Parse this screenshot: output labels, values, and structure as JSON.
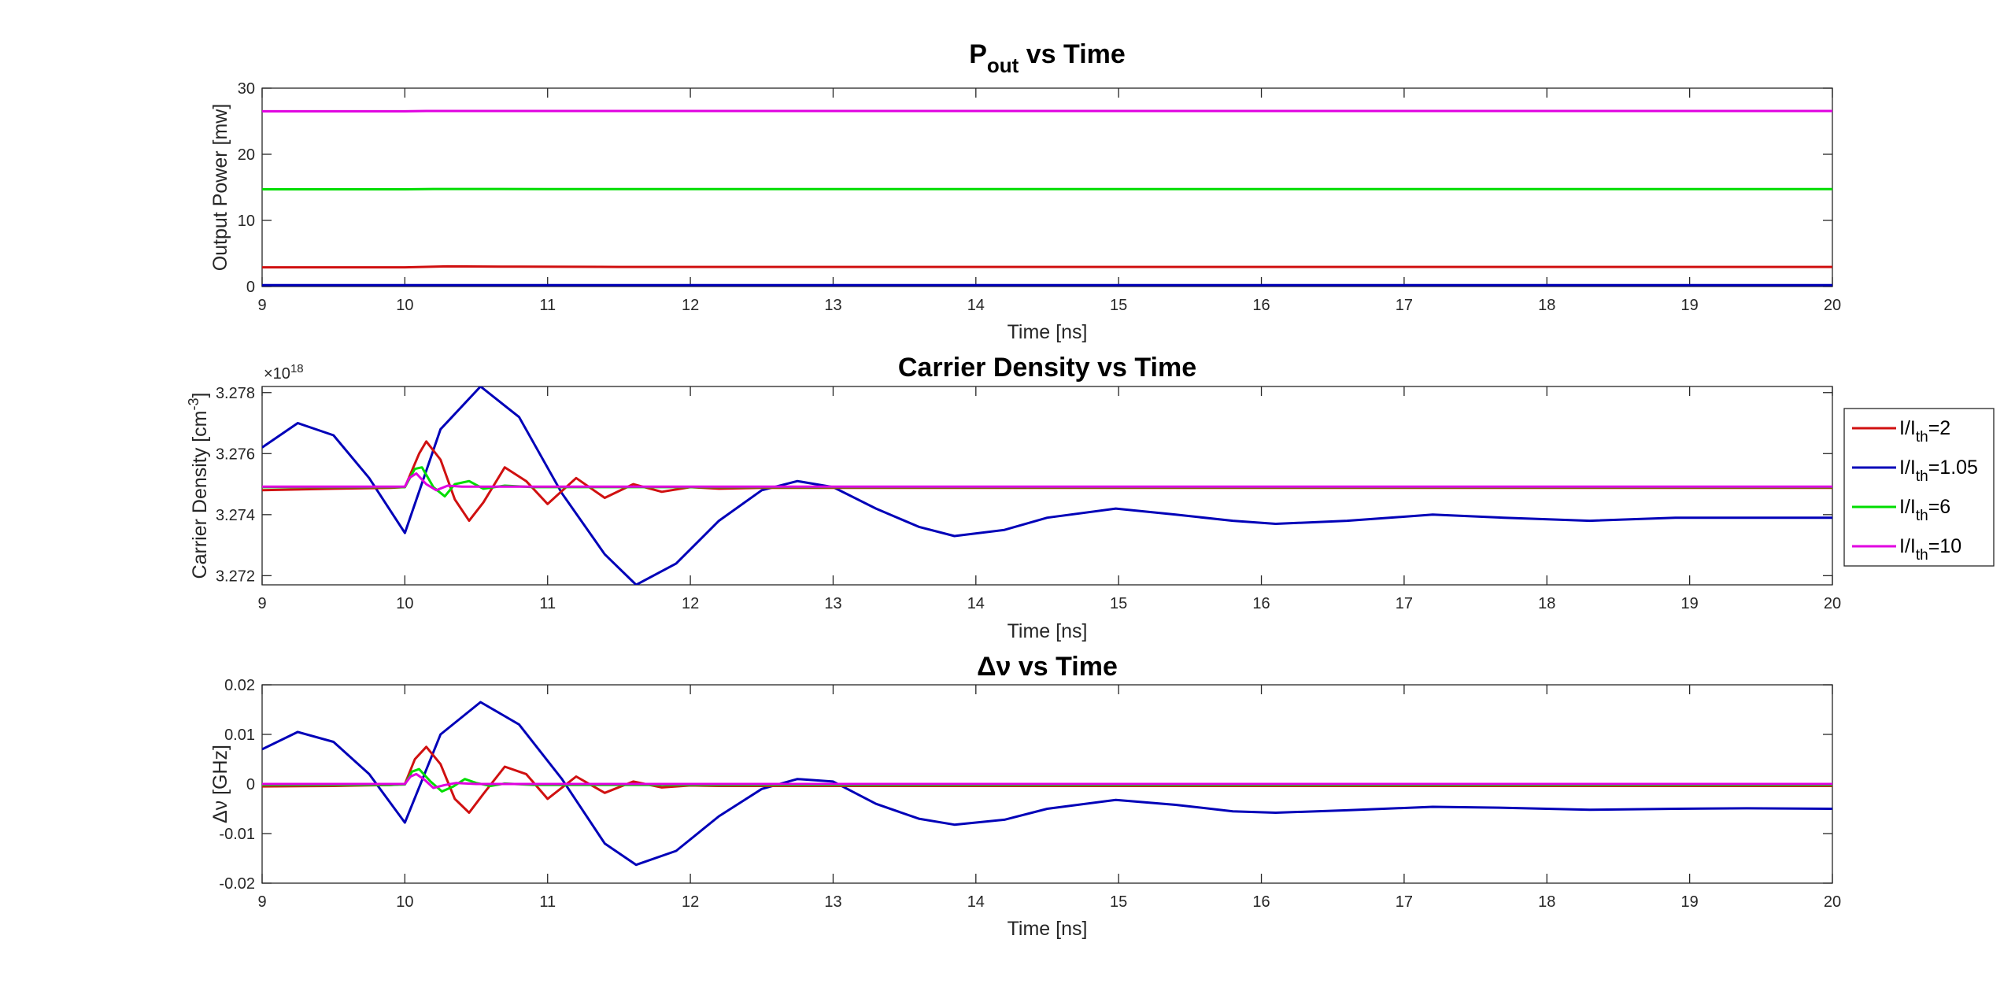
{
  "figure": {
    "legend": {
      "placement": "right-of-middle-axes",
      "entries": [
        {
          "label": "I/I",
          "sub": "th",
          "tail": "=2",
          "color": "#d01010"
        },
        {
          "label": "I/I",
          "sub": "th",
          "tail": "=1.05",
          "color": "#0000b8"
        },
        {
          "label": "I/I",
          "sub": "th",
          "tail": "=6",
          "color": "#00dd00"
        },
        {
          "label": "I/I",
          "sub": "th",
          "tail": "=10",
          "color": "#e000e0"
        }
      ]
    }
  },
  "chart_data": [
    {
      "type": "line",
      "title_main": "P",
      "title_sub": "out",
      "title_tail": " vs Time",
      "xlabel": "Time [ns]",
      "ylabel": "Output Power [mw]",
      "xlim": [
        9,
        20
      ],
      "ylim": [
        0,
        30
      ],
      "xticks": [
        9,
        10,
        11,
        12,
        13,
        14,
        15,
        16,
        17,
        18,
        19,
        20
      ],
      "yticks": [
        0,
        10,
        20,
        30
      ],
      "grid": false,
      "series": [
        {
          "color": "#d01010",
          "x": [
            9,
            10,
            10.3,
            10.8,
            11.5,
            12,
            13,
            14,
            15,
            16,
            17,
            18,
            19,
            20
          ],
          "y": [
            2.9,
            2.9,
            3.05,
            3.0,
            2.97,
            2.96,
            2.96,
            2.96,
            2.96,
            2.96,
            2.96,
            2.96,
            2.96,
            2.96
          ]
        },
        {
          "color": "#0000b8",
          "x": [
            9,
            10,
            11,
            12,
            13,
            14,
            15,
            16,
            17,
            18,
            19,
            20
          ],
          "y": [
            0.2,
            0.2,
            0.22,
            0.21,
            0.21,
            0.21,
            0.21,
            0.21,
            0.21,
            0.21,
            0.21,
            0.21
          ]
        },
        {
          "color": "#00dd00",
          "x": [
            9,
            10,
            10.2,
            11,
            12,
            13,
            14,
            15,
            16,
            17,
            18,
            19,
            20
          ],
          "y": [
            14.7,
            14.7,
            14.75,
            14.74,
            14.74,
            14.74,
            14.74,
            14.74,
            14.74,
            14.74,
            14.74,
            14.74,
            14.74
          ]
        },
        {
          "color": "#e000e0",
          "x": [
            9,
            10,
            10.15,
            11,
            12,
            13,
            14,
            15,
            16,
            17,
            18,
            19,
            20
          ],
          "y": [
            26.5,
            26.5,
            26.55,
            26.55,
            26.55,
            26.55,
            26.55,
            26.55,
            26.55,
            26.55,
            26.55,
            26.55,
            26.55
          ]
        }
      ]
    },
    {
      "type": "line",
      "title_main": "Carrier Density vs Time",
      "xlabel": "Time [ns]",
      "ylabel_main": "Carrier Density [cm",
      "ylabel_sup": "-3",
      "ylabel_tail": "]",
      "exponent_base": "×10",
      "exponent_sup": "18",
      "xlim": [
        9,
        20
      ],
      "ylim": [
        3.2717,
        3.2782
      ],
      "xticks": [
        9,
        10,
        11,
        12,
        13,
        14,
        15,
        16,
        17,
        18,
        19,
        20
      ],
      "yticks": [
        3.272,
        3.274,
        3.276,
        3.278
      ],
      "ytick_labels": [
        "3.272",
        "3.274",
        "3.276",
        "3.278"
      ],
      "grid": false,
      "series": [
        {
          "color": "#0000b8",
          "x": [
            9,
            9.25,
            9.5,
            9.75,
            10,
            10.25,
            10.53,
            10.8,
            11.1,
            11.4,
            11.62,
            11.9,
            12.2,
            12.5,
            12.75,
            13,
            13.3,
            13.6,
            13.85,
            14.2,
            14.5,
            14.98,
            15.4,
            15.8,
            16.1,
            16.6,
            17.2,
            17.7,
            18.3,
            18.9,
            19.4,
            20
          ],
          "y": [
            3.2762,
            3.277,
            3.2766,
            3.2752,
            3.2734,
            3.2768,
            3.2782,
            3.2772,
            3.2747,
            3.2727,
            3.2717,
            3.2724,
            3.2738,
            3.2748,
            3.2751,
            3.2749,
            3.2742,
            3.2736,
            3.2733,
            3.2735,
            3.2739,
            3.2742,
            3.274,
            3.2738,
            3.2737,
            3.2738,
            3.274,
            3.2739,
            3.2738,
            3.2739,
            3.2739,
            3.2739
          ]
        },
        {
          "color": "#d01010",
          "x": [
            9,
            9.5,
            9.9,
            10,
            10.1,
            10.15,
            10.25,
            10.35,
            10.45,
            10.55,
            10.7,
            10.85,
            11,
            11.2,
            11.4,
            11.6,
            11.8,
            12,
            12.2,
            12.5,
            13,
            14,
            15,
            16,
            17,
            18,
            19,
            20
          ],
          "y": [
            3.2748,
            3.27485,
            3.27488,
            3.2749,
            3.276,
            3.2764,
            3.2758,
            3.2745,
            3.2738,
            3.2744,
            3.27555,
            3.2751,
            3.27435,
            3.2752,
            3.27455,
            3.275,
            3.27475,
            3.2749,
            3.27485,
            3.27488,
            3.27488,
            3.27488,
            3.27488,
            3.27488,
            3.27488,
            3.27488,
            3.27488,
            3.27488
          ]
        },
        {
          "color": "#00dd00",
          "x": [
            9,
            9.9,
            10,
            10.07,
            10.12,
            10.2,
            10.28,
            10.35,
            10.45,
            10.55,
            10.7,
            10.9,
            11.2,
            12,
            13,
            14,
            15,
            16,
            17,
            18,
            19,
            20
          ],
          "y": [
            3.2749,
            3.2749,
            3.2749,
            3.2755,
            3.27555,
            3.2749,
            3.2746,
            3.275,
            3.2751,
            3.27485,
            3.27495,
            3.2749,
            3.2749,
            3.2749,
            3.2749,
            3.2749,
            3.2749,
            3.2749,
            3.2749,
            3.2749,
            3.2749,
            3.2749
          ]
        },
        {
          "color": "#e000e0",
          "x": [
            9,
            9.95,
            10,
            10.03,
            10.08,
            10.15,
            10.22,
            10.3,
            10.4,
            11,
            12,
            13,
            14,
            15,
            16,
            17,
            18,
            19,
            20
          ],
          "y": [
            3.27492,
            3.27492,
            3.27492,
            3.2752,
            3.27535,
            3.275,
            3.2748,
            3.27495,
            3.27492,
            3.27492,
            3.27492,
            3.27492,
            3.27492,
            3.27492,
            3.27492,
            3.27492,
            3.27492,
            3.27492,
            3.27492
          ]
        }
      ]
    },
    {
      "type": "line",
      "title_main": "Δν vs Time",
      "xlabel": "Time [ns]",
      "ylabel": "Δν [GHz]",
      "xlim": [
        9,
        20
      ],
      "ylim": [
        -0.02,
        0.02
      ],
      "xticks": [
        9,
        10,
        11,
        12,
        13,
        14,
        15,
        16,
        17,
        18,
        19,
        20
      ],
      "yticks": [
        -0.02,
        -0.01,
        0,
        0.01,
        0.02
      ],
      "ytick_labels": [
        "-0.02",
        "-0.01",
        "0",
        "0.01",
        "0.02"
      ],
      "grid": false,
      "series": [
        {
          "color": "#0000b8",
          "x": [
            9,
            9.25,
            9.5,
            9.75,
            10,
            10.25,
            10.53,
            10.8,
            11.1,
            11.4,
            11.62,
            11.9,
            12.2,
            12.5,
            12.75,
            13,
            13.3,
            13.6,
            13.85,
            14.2,
            14.5,
            14.98,
            15.4,
            15.8,
            16.1,
            16.6,
            17.2,
            17.7,
            18.3,
            18.9,
            19.4,
            20
          ],
          "y": [
            0.007,
            0.0105,
            0.0085,
            0.002,
            -0.0078,
            0.01,
            0.0165,
            0.012,
            0.001,
            -0.012,
            -0.0163,
            -0.0135,
            -0.0065,
            -0.001,
            0.001,
            0.0005,
            -0.004,
            -0.007,
            -0.0082,
            -0.0072,
            -0.005,
            -0.0032,
            -0.0042,
            -0.0055,
            -0.0058,
            -0.0053,
            -0.0046,
            -0.0048,
            -0.0052,
            -0.005,
            -0.0049,
            -0.005
          ]
        },
        {
          "color": "#d01010",
          "x": [
            9,
            9.5,
            9.9,
            10,
            10.07,
            10.15,
            10.25,
            10.35,
            10.45,
            10.55,
            10.7,
            10.85,
            11,
            11.2,
            11.4,
            11.6,
            11.8,
            12,
            12.2,
            12.5,
            13,
            14,
            15,
            16,
            17,
            18,
            19,
            20
          ],
          "y": [
            -0.0005,
            -0.0004,
            -0.0002,
            0.0,
            0.005,
            0.0075,
            0.004,
            -0.003,
            -0.0058,
            -0.002,
            0.0035,
            0.002,
            -0.003,
            0.0015,
            -0.0018,
            0.0005,
            -0.0007,
            -0.0003,
            -0.0004,
            -0.0004,
            -0.0004,
            -0.0004,
            -0.0004,
            -0.0004,
            -0.0004,
            -0.0004,
            -0.0004,
            -0.0004
          ]
        },
        {
          "color": "#00dd00",
          "x": [
            9,
            9.9,
            10,
            10.05,
            10.1,
            10.18,
            10.26,
            10.34,
            10.42,
            10.5,
            10.6,
            10.7,
            10.9,
            11.2,
            12,
            13,
            14,
            15,
            16,
            17,
            18,
            19,
            20
          ],
          "y": [
            -0.0002,
            -0.0002,
            -0.0001,
            0.0025,
            0.003,
            0.0005,
            -0.0015,
            -0.0005,
            0.001,
            0.0002,
            -0.0004,
            0.0001,
            -0.0002,
            -0.0002,
            -0.0002,
            -0.0002,
            -0.0002,
            -0.0002,
            -0.0002,
            -0.0002,
            -0.0002,
            -0.0002,
            -0.0002
          ]
        },
        {
          "color": "#e000e0",
          "x": [
            9,
            9.95,
            10,
            10.04,
            10.08,
            10.14,
            10.2,
            10.28,
            10.36,
            10.5,
            11,
            12,
            13,
            14,
            15,
            16,
            17,
            18,
            19,
            20
          ],
          "y": [
            0.0,
            0.0,
            0.0,
            0.0015,
            0.002,
            0.0008,
            -0.0008,
            -0.0002,
            0.0002,
            0.0,
            0.0,
            0.0,
            0.0,
            0.0,
            0.0,
            0.0,
            0.0,
            0.0,
            0.0,
            0.0
          ]
        }
      ]
    }
  ]
}
